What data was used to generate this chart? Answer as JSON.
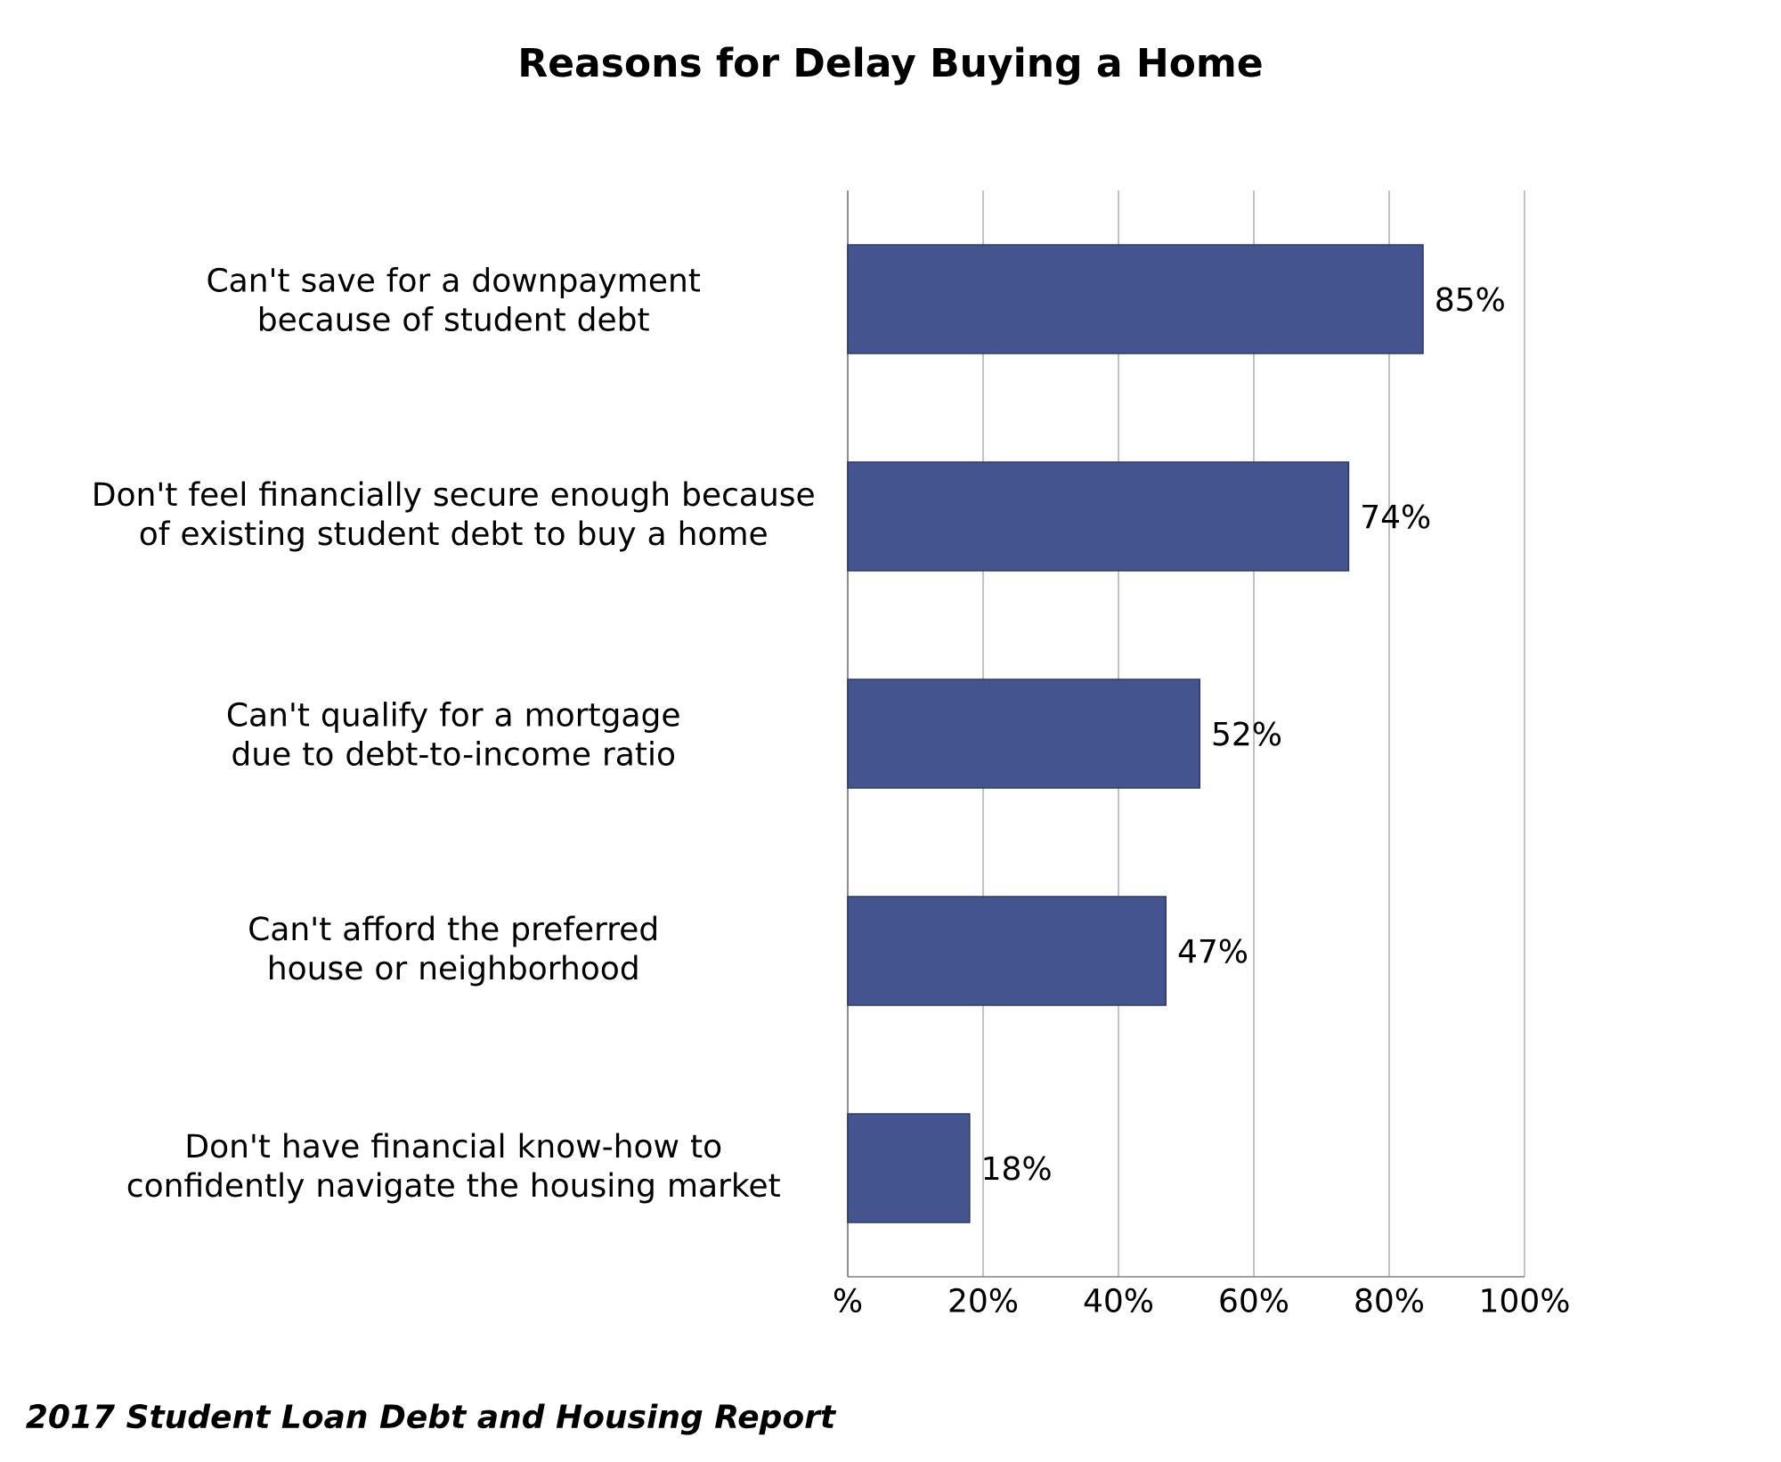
{
  "chart_data": {
    "type": "bar",
    "orientation": "horizontal",
    "title": "Reasons for Delay Buying a Home",
    "categories": [
      "Can't save for a downpayment because of student debt",
      "Don't feel financially secure enough because of existing student debt to buy a home",
      "Can't qualify for a mortgage due to debt-to-income ratio",
      "Can't afford the preferred house or neighborhood",
      "Don't have financial know-how to confidently navigate the housing market"
    ],
    "values": [
      85,
      74,
      52,
      47,
      18
    ],
    "value_labels": [
      "85%",
      "74%",
      "52%",
      "47%",
      "18%"
    ],
    "color": "#44548f",
    "xlim": [
      0,
      100
    ],
    "xticks": [
      {
        "value": 0,
        "label": "%"
      },
      {
        "value": 20,
        "label": "20%"
      },
      {
        "value": 40,
        "label": "40%"
      },
      {
        "value": 60,
        "label": "60%"
      },
      {
        "value": 80,
        "label": "80%"
      },
      {
        "value": 100,
        "label": "100%"
      }
    ],
    "grid": "x",
    "annotations": [
      "2017 Student Loan Debt and Housing Report"
    ]
  }
}
